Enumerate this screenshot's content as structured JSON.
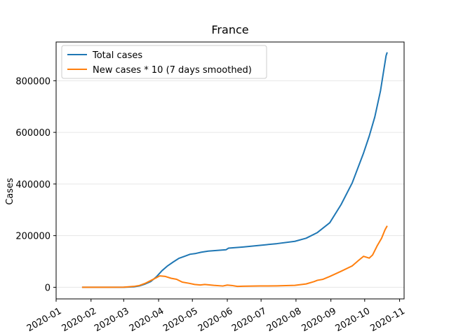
{
  "chart_data": {
    "type": "line",
    "title": "France",
    "xlabel": "",
    "ylabel": "Cases",
    "x_tick_labels": [
      "2020-01",
      "2020-02",
      "2020-03",
      "2020-04",
      "2020-05",
      "2020-06",
      "2020-07",
      "2020-08",
      "2020-09",
      "2020-10",
      "2020-11"
    ],
    "y_tick_values": [
      0,
      200000,
      400000,
      600000,
      800000
    ],
    "y_tick_labels": [
      "0",
      "200000",
      "400000",
      "600000",
      "800000"
    ],
    "ylim": [
      -45000,
      950000
    ],
    "xlim": [
      "2020-01-01",
      "2020-11-05"
    ],
    "grid": "horizontal",
    "legend_position": "top-left",
    "series": [
      {
        "name": "Total cases",
        "color": "#1f77b4",
        "points": [
          [
            "2020-01-24",
            0
          ],
          [
            "2020-02-15",
            12
          ],
          [
            "2020-03-01",
            130
          ],
          [
            "2020-03-10",
            1780
          ],
          [
            "2020-03-15",
            5400
          ],
          [
            "2020-03-20",
            12600
          ],
          [
            "2020-03-25",
            22300
          ],
          [
            "2020-03-30",
            40200
          ],
          [
            "2020-04-04",
            64300
          ],
          [
            "2020-04-09",
            83000
          ],
          [
            "2020-04-14",
            98000
          ],
          [
            "2020-04-19",
            112000
          ],
          [
            "2020-04-24",
            120000
          ],
          [
            "2020-04-29",
            128000
          ],
          [
            "2020-05-04",
            131000
          ],
          [
            "2020-05-09",
            136000
          ],
          [
            "2020-05-15",
            140000
          ],
          [
            "2020-05-25",
            143500
          ],
          [
            "2020-05-31",
            145500
          ],
          [
            "2020-06-02",
            151500
          ],
          [
            "2020-06-15",
            156000
          ],
          [
            "2020-06-30",
            162500
          ],
          [
            "2020-07-15",
            169000
          ],
          [
            "2020-07-31",
            178000
          ],
          [
            "2020-08-10",
            190000
          ],
          [
            "2020-08-20",
            212000
          ],
          [
            "2020-08-31",
            250000
          ],
          [
            "2020-09-10",
            320000
          ],
          [
            "2020-09-20",
            405000
          ],
          [
            "2020-09-30",
            520000
          ],
          [
            "2020-10-05",
            585000
          ],
          [
            "2020-10-10",
            660000
          ],
          [
            "2020-10-15",
            760000
          ],
          [
            "2020-10-20",
            897000
          ],
          [
            "2020-10-21",
            910000
          ]
        ]
      },
      {
        "name": "New cases * 10 (7 days smoothed)",
        "color": "#ff7f0e",
        "points": [
          [
            "2020-01-24",
            0
          ],
          [
            "2020-02-15",
            0
          ],
          [
            "2020-03-01",
            300
          ],
          [
            "2020-03-10",
            3300
          ],
          [
            "2020-03-15",
            7000
          ],
          [
            "2020-03-20",
            15000
          ],
          [
            "2020-03-25",
            26000
          ],
          [
            "2020-03-30",
            37000
          ],
          [
            "2020-04-02",
            44000
          ],
          [
            "2020-04-07",
            42000
          ],
          [
            "2020-04-12",
            35000
          ],
          [
            "2020-04-17",
            31000
          ],
          [
            "2020-04-22",
            20000
          ],
          [
            "2020-04-28",
            15500
          ],
          [
            "2020-05-03",
            11000
          ],
          [
            "2020-05-08",
            9000
          ],
          [
            "2020-05-12",
            11000
          ],
          [
            "2020-05-20",
            7500
          ],
          [
            "2020-05-28",
            5000
          ],
          [
            "2020-06-01",
            8500
          ],
          [
            "2020-06-05",
            7000
          ],
          [
            "2020-06-10",
            3500
          ],
          [
            "2020-06-15",
            4200
          ],
          [
            "2020-06-30",
            5000
          ],
          [
            "2020-07-15",
            5500
          ],
          [
            "2020-07-31",
            7500
          ],
          [
            "2020-08-10",
            13000
          ],
          [
            "2020-08-17",
            22000
          ],
          [
            "2020-08-20",
            27000
          ],
          [
            "2020-08-25",
            31000
          ],
          [
            "2020-08-31",
            42000
          ],
          [
            "2020-09-10",
            62000
          ],
          [
            "2020-09-20",
            83000
          ],
          [
            "2020-09-25",
            102000
          ],
          [
            "2020-09-30",
            120000
          ],
          [
            "2020-10-05",
            113000
          ],
          [
            "2020-10-08",
            125000
          ],
          [
            "2020-10-12",
            160000
          ],
          [
            "2020-10-16",
            190000
          ],
          [
            "2020-10-19",
            222000
          ],
          [
            "2020-10-21",
            238000
          ]
        ]
      }
    ]
  }
}
